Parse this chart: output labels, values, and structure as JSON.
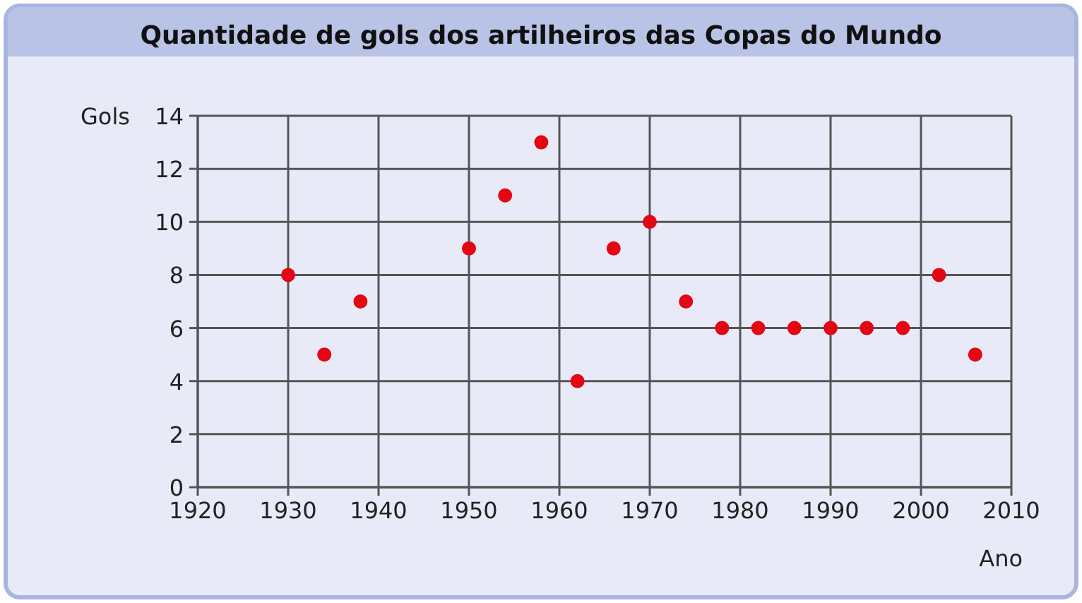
{
  "chart_data": {
    "type": "scatter",
    "title": "Quantidade de gols dos artilheiros das Copas do Mundo",
    "xlabel": "Ano",
    "ylabel": "Gols",
    "x": [
      1930,
      1934,
      1938,
      1950,
      1954,
      1958,
      1962,
      1966,
      1970,
      1974,
      1978,
      1982,
      1986,
      1990,
      1994,
      1998,
      2002,
      2006
    ],
    "values": [
      8,
      5,
      7,
      9,
      11,
      13,
      4,
      9,
      10,
      7,
      6,
      6,
      6,
      6,
      6,
      6,
      8,
      5
    ],
    "color": "#e30613",
    "marker": "circle",
    "grid": true,
    "xlim": [
      1920,
      2010
    ],
    "xticks": [
      1920,
      1930,
      1940,
      1950,
      1960,
      1970,
      1980,
      1990,
      2000,
      2010
    ],
    "ylim": [
      0,
      14
    ],
    "yticks": [
      0,
      2,
      4,
      6,
      8,
      10,
      12,
      14
    ]
  }
}
